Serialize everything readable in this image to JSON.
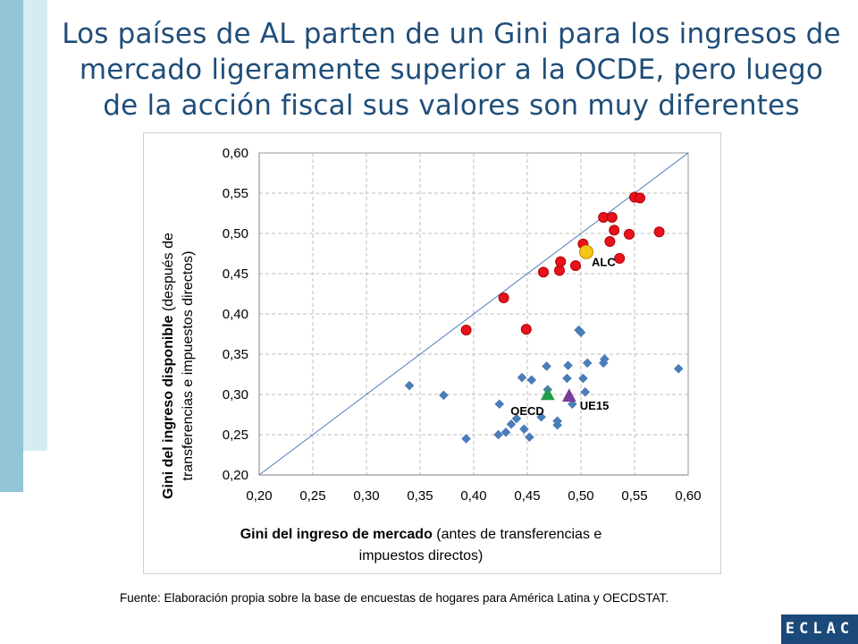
{
  "slide": {
    "title_line1": "Los países de AL parten de un Gini para los ingresos de",
    "title_line2": "mercado ligeramente superior a la OCDE, pero luego",
    "title_line3": "de la acción fiscal sus valores son muy diferentes",
    "footer": "Fuente: Elaboración propia sobre la base de encuestas de hogares para América Latina y OECDSTAT.",
    "logo": "ECLAC",
    "colors": {
      "title": "#1f4e79",
      "accent_bar": "#92c5d6",
      "accent_bar_light": "#d7ecf2",
      "logo_bg": "#1b4a7a"
    }
  },
  "chart_data": {
    "type": "scatter",
    "xlabel_bold": "Gini del ingreso de mercado",
    "xlabel_rest_line1": " (antes de transferencias e",
    "xlabel_line2": "impuestos directos)",
    "ylabel_bold": "Gini del ingreso disponible",
    "ylabel_rest_line1": " (después de",
    "ylabel_line2": "transferencias e  impuestos directos)",
    "xlim": [
      0.2,
      0.6
    ],
    "ylim": [
      0.2,
      0.6
    ],
    "xticks": [
      "0,20",
      "0,25",
      "0,30",
      "0,35",
      "0,40",
      "0,45",
      "0,50",
      "0,55",
      "0,60"
    ],
    "yticks": [
      "0,20",
      "0,25",
      "0,30",
      "0,35",
      "0,40",
      "0,45",
      "0,50",
      "0,55",
      "0,60"
    ],
    "grid": true,
    "reference_line": {
      "x": [
        0.2,
        0.6
      ],
      "y": [
        0.2,
        0.6
      ]
    },
    "series": [
      {
        "marker": "circle",
        "color": "#e8121c",
        "points": [
          [
            0.393,
            0.38
          ],
          [
            0.428,
            0.42
          ],
          [
            0.449,
            0.381
          ],
          [
            0.465,
            0.452
          ],
          [
            0.48,
            0.454
          ],
          [
            0.481,
            0.465
          ],
          [
            0.495,
            0.46
          ],
          [
            0.502,
            0.487
          ],
          [
            0.521,
            0.52
          ],
          [
            0.527,
            0.49
          ],
          [
            0.529,
            0.52
          ],
          [
            0.531,
            0.504
          ],
          [
            0.536,
            0.469
          ],
          [
            0.545,
            0.499
          ],
          [
            0.55,
            0.545
          ],
          [
            0.555,
            0.544
          ],
          [
            0.573,
            0.502
          ]
        ]
      },
      {
        "marker": "diamond",
        "color": "#4a7ebb",
        "points": [
          [
            0.34,
            0.311
          ],
          [
            0.372,
            0.299
          ],
          [
            0.393,
            0.245
          ],
          [
            0.423,
            0.25
          ],
          [
            0.424,
            0.288
          ],
          [
            0.43,
            0.253
          ],
          [
            0.435,
            0.263
          ],
          [
            0.44,
            0.27
          ],
          [
            0.445,
            0.321
          ],
          [
            0.447,
            0.257
          ],
          [
            0.452,
            0.247
          ],
          [
            0.454,
            0.318
          ],
          [
            0.463,
            0.272
          ],
          [
            0.468,
            0.335
          ],
          [
            0.469,
            0.306
          ],
          [
            0.478,
            0.262
          ],
          [
            0.478,
            0.267
          ],
          [
            0.487,
            0.32
          ],
          [
            0.488,
            0.336
          ],
          [
            0.492,
            0.288
          ],
          [
            0.498,
            0.38
          ],
          [
            0.5,
            0.377
          ],
          [
            0.502,
            0.32
          ],
          [
            0.504,
            0.303
          ],
          [
            0.506,
            0.339
          ],
          [
            0.521,
            0.339
          ],
          [
            0.522,
            0.344
          ],
          [
            0.591,
            0.332
          ]
        ]
      }
    ],
    "highlights": [
      {
        "label": "ALC",
        "marker": "circle",
        "color": "#f5c518",
        "x": 0.505,
        "y": 0.477
      },
      {
        "label": "OECD",
        "marker": "triangle",
        "color": "#1e9e4a",
        "x": 0.469,
        "y": 0.3
      },
      {
        "label": "UE15",
        "marker": "triangle",
        "color": "#7a3a9a",
        "x": 0.489,
        "y": 0.298
      }
    ]
  }
}
